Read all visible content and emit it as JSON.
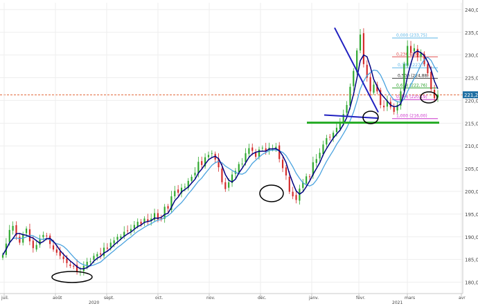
{
  "chart_data": {
    "type": "candlestick",
    "instrument": "",
    "y_ticks": [
      "180,00",
      "185,00",
      "190,00",
      "195,00",
      "200,00",
      "205,00",
      "210,00",
      "215,00",
      "220,00",
      "225,00",
      "230,00",
      "235,00",
      "240,00"
    ],
    "ylim": [
      177.5,
      241.5
    ],
    "x_months": [
      "juil.",
      "août",
      "sept.",
      "oct.",
      "nov.",
      "déc.",
      "janv.",
      "févr.",
      "mars",
      "avr"
    ],
    "x_years": [
      "2020",
      "2021"
    ],
    "last_price_label": "221,25",
    "last_price": 221.25,
    "fib_levels": [
      {
        "label": "0,000 (233,75)",
        "value": 233.75,
        "color": "#5ab4e6"
      },
      {
        "label": "0,236 (230,?)",
        "value": 229.6,
        "color": "#e05050"
      },
      {
        "label": "0,382 (227,?)",
        "value": 227.2,
        "color": "#5ab4e6"
      },
      {
        "label": "0,500 (224,88)",
        "value": 224.88,
        "color": "#444444"
      },
      {
        "label": "0,618 (222,76)",
        "value": 222.76,
        "color": "#2aa02a"
      },
      {
        "label": "0,764 (220,19)",
        "value": 220.19,
        "color": "#cc33cc"
      },
      {
        "label": "1,000 (216,00)",
        "value": 216.0,
        "color": "#cc33cc"
      }
    ],
    "support_line": {
      "value": 215.1,
      "color": "#22aa22"
    },
    "series": [
      {
        "name": "",
        "color": "#000080",
        "closes_key": "ma_fast"
      },
      {
        "name": "",
        "color": "#4aa3df",
        "closes_key": "ma_slow"
      }
    ],
    "candles": {
      "start_date": "2020-07-01",
      "closes": [
        186.0,
        188.5,
        191.5,
        192.4,
        190.3,
        188.7,
        190.5,
        191.8,
        189.0,
        187.5,
        188.2,
        189.6,
        190.4,
        190.1,
        188.4,
        187.2,
        186.5,
        185.8,
        185.1,
        184.2,
        183.6,
        183.5,
        182.4,
        182.3,
        183.6,
        184.5,
        184.6,
        185.8,
        186.2,
        186.1,
        187.6,
        187.4,
        188.7,
        189.2,
        190.0,
        190.1,
        191.1,
        191.3,
        191.7,
        192.6,
        193.3,
        192.8,
        194.0,
        193.3,
        194.0,
        195.2,
        193.8,
        194.1,
        196.6,
        196.2,
        198.9,
        200.1,
        199.7,
        200.8,
        201.0,
        202.3,
        203.2,
        204.1,
        206.5,
        205.8,
        207.5,
        208.0,
        208.4,
        207.0,
        205.3,
        202.0,
        200.5,
        202.0,
        203.7,
        204.5,
        206.0,
        206.1,
        208.4,
        209.5,
        208.9,
        207.6,
        209.2,
        209.6,
        208.9,
        209.6,
        209.3,
        209.8,
        207.1,
        205.1,
        203.5,
        199.9,
        198.9,
        198.1,
        200.6,
        202.0,
        203.3,
        203.2,
        206.4,
        207.1,
        208.5,
        210.3,
        211.7,
        211.9,
        212.9,
        214.0,
        215.0,
        217.0,
        219.0,
        223.0,
        226.5,
        231.0,
        234.5,
        228.0,
        225.0,
        222.0,
        223.5,
        222.0,
        219.0,
        218.5,
        220.0,
        218.5,
        217.5,
        219.0,
        222.0,
        228.0,
        232.0,
        230.5,
        231.5,
        229.5,
        230.5,
        228.0,
        226.0,
        222.5,
        220.5,
        221.3
      ]
    }
  }
}
